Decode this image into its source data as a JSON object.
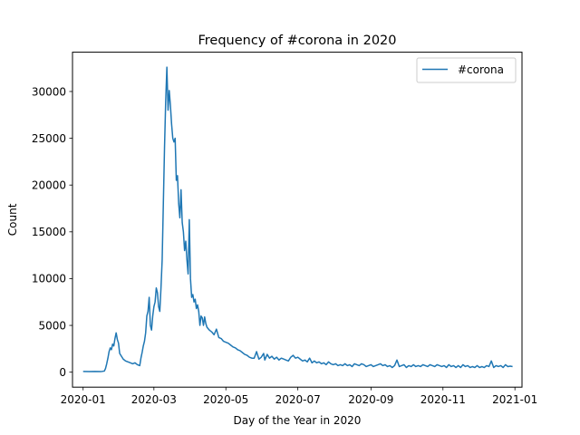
{
  "chart_data": {
    "type": "line",
    "title": "Frequency of #corona in 2020",
    "xlabel": "Day of the Year in 2020",
    "ylabel": "Count",
    "xlim": [
      -9,
      372
    ],
    "ylim": [
      -1600,
      34200
    ],
    "x_ticks": [
      {
        "day": 0,
        "label": "2020-01"
      },
      {
        "day": 60,
        "label": "2020-03"
      },
      {
        "day": 121,
        "label": "2020-05"
      },
      {
        "day": 182,
        "label": "2020-07"
      },
      {
        "day": 244,
        "label": "2020-09"
      },
      {
        "day": 305,
        "label": "2020-11"
      },
      {
        "day": 366,
        "label": "2021-01"
      }
    ],
    "y_ticks": [
      0,
      5000,
      10000,
      15000,
      20000,
      25000,
      30000
    ],
    "legend": {
      "position": "top-right",
      "entries": [
        "#corona"
      ]
    },
    "grid": false,
    "series": [
      {
        "name": "#corona",
        "color": "#1f77b4",
        "points": [
          [
            0,
            80
          ],
          [
            5,
            70
          ],
          [
            10,
            80
          ],
          [
            15,
            60
          ],
          [
            18,
            120
          ],
          [
            19,
            400
          ],
          [
            20,
            900
          ],
          [
            21,
            1500
          ],
          [
            22,
            2200
          ],
          [
            23,
            2600
          ],
          [
            24,
            2400
          ],
          [
            25,
            3000
          ],
          [
            26,
            2800
          ],
          [
            27,
            3600
          ],
          [
            28,
            4200
          ],
          [
            29,
            3500
          ],
          [
            30,
            3100
          ],
          [
            31,
            2000
          ],
          [
            32,
            1800
          ],
          [
            34,
            1400
          ],
          [
            36,
            1200
          ],
          [
            38,
            1100
          ],
          [
            40,
            1000
          ],
          [
            42,
            900
          ],
          [
            44,
            1000
          ],
          [
            46,
            800
          ],
          [
            48,
            700
          ],
          [
            49,
            1500
          ],
          [
            50,
            2100
          ],
          [
            51,
            2800
          ],
          [
            52,
            3300
          ],
          [
            53,
            4200
          ],
          [
            54,
            6000
          ],
          [
            55,
            6500
          ],
          [
            56,
            8000
          ],
          [
            57,
            5000
          ],
          [
            58,
            4500
          ],
          [
            59,
            6000
          ],
          [
            60,
            7000
          ],
          [
            61,
            7500
          ],
          [
            62,
            9000
          ],
          [
            63,
            8500
          ],
          [
            64,
            7000
          ],
          [
            65,
            6500
          ],
          [
            66,
            9000
          ],
          [
            67,
            12000
          ],
          [
            68,
            18000
          ],
          [
            69,
            24000
          ],
          [
            70,
            29000
          ],
          [
            71,
            32600
          ],
          [
            72,
            28000
          ],
          [
            73,
            30100
          ],
          [
            74,
            28500
          ],
          [
            75,
            26500
          ],
          [
            76,
            25000
          ],
          [
            77,
            24600
          ],
          [
            78,
            25000
          ],
          [
            79,
            20500
          ],
          [
            80,
            21000
          ],
          [
            81,
            18000
          ],
          [
            82,
            16500
          ],
          [
            83,
            19500
          ],
          [
            84,
            16000
          ],
          [
            85,
            15000
          ],
          [
            86,
            13000
          ],
          [
            87,
            14000
          ],
          [
            88,
            12000
          ],
          [
            89,
            10500
          ],
          [
            90,
            16300
          ],
          [
            91,
            10000
          ],
          [
            92,
            8000
          ],
          [
            93,
            8300
          ],
          [
            94,
            7500
          ],
          [
            95,
            7800
          ],
          [
            96,
            6800
          ],
          [
            97,
            7200
          ],
          [
            98,
            6500
          ],
          [
            99,
            5000
          ],
          [
            100,
            6000
          ],
          [
            101,
            5800
          ],
          [
            102,
            5000
          ],
          [
            103,
            5900
          ],
          [
            104,
            5200
          ],
          [
            105,
            4800
          ],
          [
            107,
            4500
          ],
          [
            109,
            4300
          ],
          [
            111,
            4000
          ],
          [
            113,
            4600
          ],
          [
            115,
            3700
          ],
          [
            117,
            3600
          ],
          [
            119,
            3300
          ],
          [
            121,
            3200
          ],
          [
            123,
            3100
          ],
          [
            125,
            2900
          ],
          [
            127,
            2700
          ],
          [
            129,
            2600
          ],
          [
            131,
            2400
          ],
          [
            133,
            2300
          ],
          [
            135,
            2100
          ],
          [
            137,
            1900
          ],
          [
            139,
            1800
          ],
          [
            141,
            1600
          ],
          [
            143,
            1500
          ],
          [
            145,
            1500
          ],
          [
            147,
            2200
          ],
          [
            149,
            1400
          ],
          [
            151,
            1600
          ],
          [
            153,
            2000
          ],
          [
            154,
            1300
          ],
          [
            156,
            1900
          ],
          [
            158,
            1500
          ],
          [
            160,
            1700
          ],
          [
            162,
            1400
          ],
          [
            164,
            1600
          ],
          [
            166,
            1300
          ],
          [
            168,
            1500
          ],
          [
            170,
            1400
          ],
          [
            172,
            1300
          ],
          [
            174,
            1200
          ],
          [
            176,
            1600
          ],
          [
            178,
            1800
          ],
          [
            180,
            1500
          ],
          [
            182,
            1600
          ],
          [
            184,
            1400
          ],
          [
            186,
            1200
          ],
          [
            188,
            1300
          ],
          [
            190,
            1100
          ],
          [
            192,
            1500
          ],
          [
            194,
            1000
          ],
          [
            196,
            1200
          ],
          [
            198,
            1000
          ],
          [
            200,
            1100
          ],
          [
            202,
            900
          ],
          [
            204,
            1000
          ],
          [
            206,
            800
          ],
          [
            208,
            1100
          ],
          [
            210,
            900
          ],
          [
            212,
            800
          ],
          [
            214,
            900
          ],
          [
            216,
            700
          ],
          [
            218,
            800
          ],
          [
            220,
            700
          ],
          [
            222,
            900
          ],
          [
            224,
            700
          ],
          [
            226,
            800
          ],
          [
            228,
            600
          ],
          [
            230,
            900
          ],
          [
            232,
            800
          ],
          [
            234,
            700
          ],
          [
            236,
            900
          ],
          [
            238,
            800
          ],
          [
            240,
            600
          ],
          [
            242,
            700
          ],
          [
            244,
            800
          ],
          [
            246,
            600
          ],
          [
            248,
            700
          ],
          [
            250,
            800
          ],
          [
            252,
            900
          ],
          [
            254,
            700
          ],
          [
            256,
            800
          ],
          [
            258,
            600
          ],
          [
            260,
            700
          ],
          [
            262,
            500
          ],
          [
            264,
            700
          ],
          [
            266,
            1300
          ],
          [
            268,
            600
          ],
          [
            270,
            700
          ],
          [
            272,
            800
          ],
          [
            274,
            500
          ],
          [
            276,
            700
          ],
          [
            278,
            600
          ],
          [
            280,
            800
          ],
          [
            282,
            600
          ],
          [
            284,
            700
          ],
          [
            286,
            600
          ],
          [
            288,
            800
          ],
          [
            290,
            700
          ],
          [
            292,
            600
          ],
          [
            294,
            800
          ],
          [
            296,
            700
          ],
          [
            298,
            600
          ],
          [
            300,
            800
          ],
          [
            302,
            700
          ],
          [
            304,
            600
          ],
          [
            306,
            700
          ],
          [
            308,
            500
          ],
          [
            310,
            800
          ],
          [
            312,
            600
          ],
          [
            314,
            700
          ],
          [
            316,
            500
          ],
          [
            318,
            700
          ],
          [
            320,
            500
          ],
          [
            322,
            800
          ],
          [
            324,
            600
          ],
          [
            326,
            700
          ],
          [
            328,
            500
          ],
          [
            330,
            600
          ],
          [
            332,
            500
          ],
          [
            334,
            700
          ],
          [
            336,
            500
          ],
          [
            338,
            600
          ],
          [
            340,
            500
          ],
          [
            342,
            700
          ],
          [
            344,
            600
          ],
          [
            346,
            1200
          ],
          [
            348,
            500
          ],
          [
            350,
            700
          ],
          [
            352,
            600
          ],
          [
            354,
            700
          ],
          [
            356,
            500
          ],
          [
            358,
            800
          ],
          [
            360,
            600
          ],
          [
            362,
            650
          ],
          [
            364,
            600
          ]
        ]
      }
    ]
  }
}
